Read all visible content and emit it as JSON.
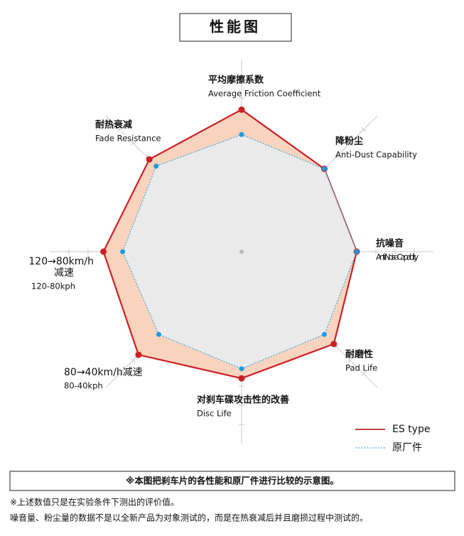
{
  "chart_data": {
    "type": "radar",
    "title": "性能图",
    "axes": [
      {
        "label": [
          "平均摩擦系数"
        ],
        "sub": "Average Friction Coefficient"
      },
      {
        "label": [
          "降粉尘"
        ],
        "sub": "Anti-Dust Capability"
      },
      {
        "label": [
          "抗噪音"
        ],
        "sub": "Anti-Noise Capability"
      },
      {
        "label": [
          "耐磨性"
        ],
        "sub": "Pad Life"
      },
      {
        "label": [
          "对刹车碟攻击性的改善"
        ],
        "sub": "Disc Life"
      },
      {
        "label": [
          "80→40km/h减速"
        ],
        "sub": "80-40kph"
      },
      {
        "label": [
          "120→80km/h",
          "减速"
        ],
        "sub": "120-80kph"
      },
      {
        "label": [
          "耐热衰减"
        ],
        "sub": "Fade Resistance"
      }
    ],
    "series": [
      {
        "name": "ES type",
        "color": "#cc1f24",
        "fill": "#f8d3bd",
        "values": [
          7.4,
          6.1,
          6.0,
          6.8,
          6.6,
          7.6,
          7.2,
          6.8
        ]
      },
      {
        "name": "原厂件",
        "color": "#1a9be0",
        "fill": "#e7edf3",
        "values": [
          6.1,
          6.1,
          6.0,
          6.1,
          6.1,
          6.1,
          6.2,
          6.3
        ]
      }
    ],
    "rlim": [
      0,
      10
    ],
    "rticks": [
      1,
      2,
      3,
      4,
      5,
      6,
      7,
      8,
      9
    ],
    "notice": "※本图把刹车片的各性能和原厂件进行比较的示意图。",
    "notes": [
      "※上述数值只是在实验条件下测出的评价值。",
      "噪音量、粉尘量的数据不是以全新产品为对象测试的，而是在热衰减后并且磨损过程中测试的。"
    ]
  }
}
